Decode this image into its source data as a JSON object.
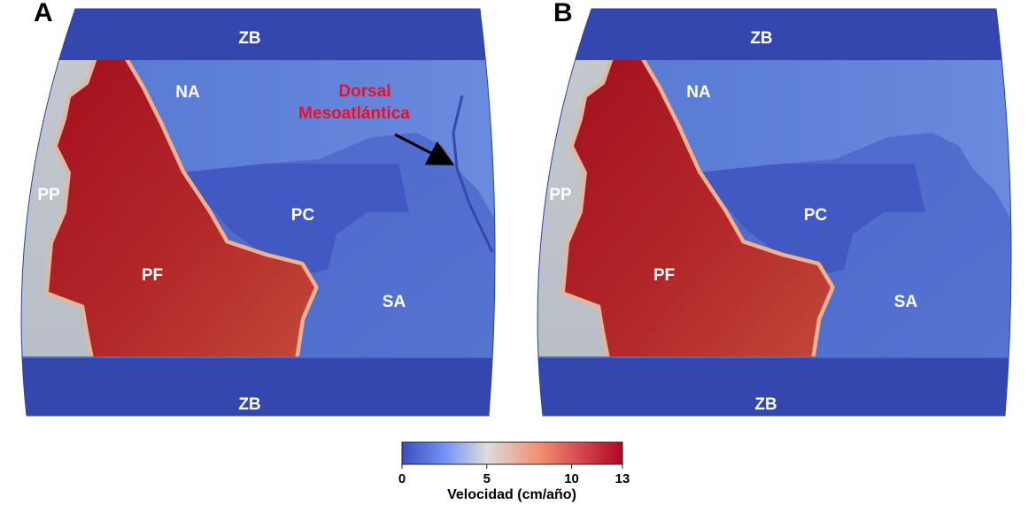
{
  "panels": [
    {
      "letter": "A",
      "labels": {
        "zb_top": "ZB",
        "na": "NA",
        "pp": "PP",
        "pc": "PC",
        "pf": "PF",
        "sa": "SA",
        "zb_bottom": "ZB"
      },
      "annotation": {
        "line1": "Dorsal",
        "line2": "Mesoatlántica"
      }
    },
    {
      "letter": "B",
      "labels": {
        "zb_top": "ZB",
        "na": "NA",
        "pp": "PP",
        "pc": "PC",
        "pf": "PF",
        "sa": "SA",
        "zb_bottom": "ZB"
      }
    }
  ],
  "colorbar": {
    "title": "Velocidad (cm/año)",
    "min": 0,
    "max": 13,
    "ticks": [
      {
        "value": 0,
        "label": "0"
      },
      {
        "value": 5,
        "label": "5"
      },
      {
        "value": 10,
        "label": "10"
      },
      {
        "value": 13,
        "label": "13"
      }
    ],
    "stops": [
      {
        "value": 0,
        "color": "#3b4cc0"
      },
      {
        "value": 5,
        "color": "#dddcdc"
      },
      {
        "value": 13,
        "color": "#b40426"
      }
    ]
  },
  "colors": {
    "zb_band": "#3447ae",
    "na_plate": "#5d7fd6",
    "sa_plate": "#4c6acb",
    "pc_plate": "#4259c4",
    "pf_plate": "#b32a2a",
    "pp_plate": "#bdc2c9",
    "boundary_halo": "#e9b497",
    "annotation": "#e8112d"
  }
}
